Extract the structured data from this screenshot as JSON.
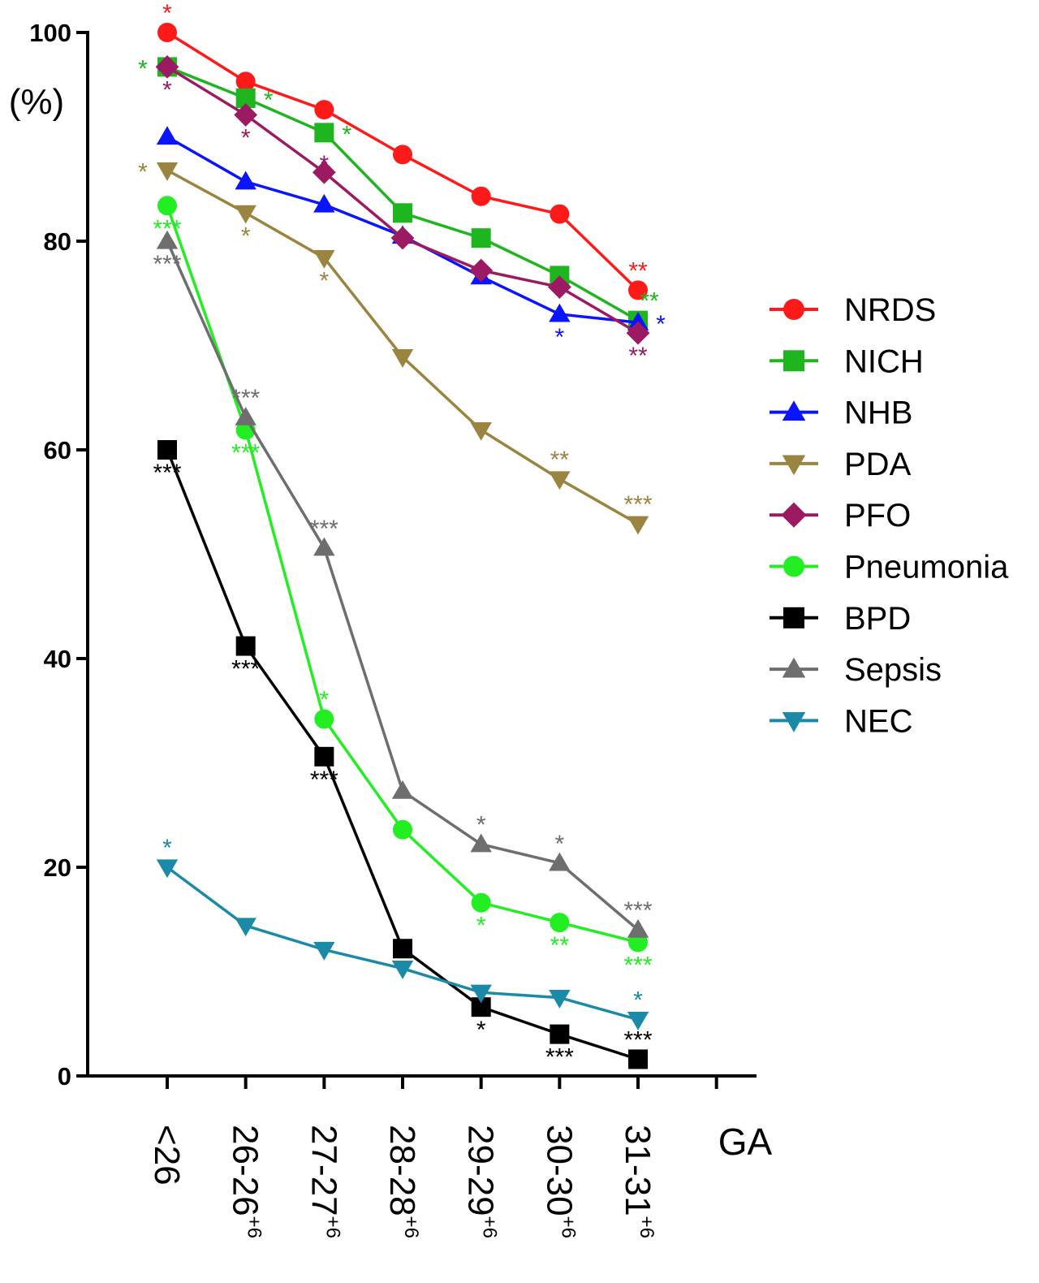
{
  "chart_data": {
    "type": "line",
    "title": "",
    "ylabel": "(%)",
    "xlabel": "GA",
    "ylim": [
      0,
      100
    ],
    "yticks": [
      0,
      20,
      40,
      60,
      80,
      100
    ],
    "grid": false,
    "legend_placement": "right",
    "categories": [
      {
        "base": "<26",
        "sup": ""
      },
      {
        "base": "26-26",
        "sup": "+6"
      },
      {
        "base": "27-27",
        "sup": "+6"
      },
      {
        "base": "28-28",
        "sup": "+6"
      },
      {
        "base": "29-29",
        "sup": "+6"
      },
      {
        "base": "30-30",
        "sup": "+6"
      },
      {
        "base": "31-31",
        "sup": "+6"
      }
    ],
    "series": [
      {
        "name": "NRDS",
        "color": "#ff1a1a",
        "marker": "circle",
        "values": [
          100,
          95.3,
          92.6,
          88.3,
          84.3,
          82.6,
          75.3
        ]
      },
      {
        "name": "NICH",
        "color": "#1fb51f",
        "marker": "square",
        "values": [
          96.7,
          93.7,
          90.4,
          82.7,
          80.3,
          76.7,
          72.4
        ]
      },
      {
        "name": "NHB",
        "color": "#0a14ff",
        "marker": "triangle-up",
        "values": [
          90.0,
          85.7,
          83.5,
          80.5,
          76.6,
          73.0,
          72.2
        ]
      },
      {
        "name": "PDA",
        "color": "#9a8440",
        "marker": "triangle-down",
        "values": [
          86.8,
          82.7,
          78.4,
          68.9,
          61.9,
          57.2,
          52.9
        ]
      },
      {
        "name": "PFO",
        "color": "#9c1a62",
        "marker": "diamond",
        "values": [
          96.7,
          92.1,
          86.6,
          80.3,
          77.2,
          75.6,
          71.2
        ]
      },
      {
        "name": "Pneumonia",
        "color": "#22ee22",
        "marker": "circle",
        "values": [
          83.4,
          61.9,
          34.2,
          23.6,
          16.6,
          14.7,
          12.8
        ]
      },
      {
        "name": "BPD",
        "color": "#000000",
        "marker": "square",
        "values": [
          60.0,
          41.2,
          30.6,
          12.2,
          6.6,
          4.0,
          1.6
        ]
      },
      {
        "name": "Sepsis",
        "color": "#6e6e6e",
        "marker": "triangle-up",
        "values": [
          80.0,
          63.1,
          50.6,
          27.3,
          22.2,
          20.4,
          14.0
        ]
      },
      {
        "name": "NEC",
        "color": "#1a8aa8",
        "marker": "triangle-down",
        "values": [
          20.0,
          14.4,
          12.1,
          10.3,
          8.0,
          7.5,
          5.4
        ]
      }
    ],
    "annotations": [
      {
        "series": 0,
        "index": 0,
        "text": "*",
        "pos": "above"
      },
      {
        "series": 0,
        "index": 6,
        "text": "**",
        "pos": "above"
      },
      {
        "series": 1,
        "index": 0,
        "text": "*",
        "pos": "left"
      },
      {
        "series": 1,
        "index": 1,
        "text": "*",
        "pos": "right"
      },
      {
        "series": 1,
        "index": 2,
        "text": "*",
        "pos": "right"
      },
      {
        "series": 1,
        "index": 6,
        "text": "**",
        "pos": "above-right"
      },
      {
        "series": 2,
        "index": 5,
        "text": "*",
        "pos": "below"
      },
      {
        "series": 2,
        "index": 6,
        "text": "*",
        "pos": "right"
      },
      {
        "series": 3,
        "index": 0,
        "text": "*",
        "pos": "left"
      },
      {
        "series": 3,
        "index": 1,
        "text": "*",
        "pos": "below"
      },
      {
        "series": 3,
        "index": 2,
        "text": "*",
        "pos": "below"
      },
      {
        "series": 3,
        "index": 5,
        "text": "**",
        "pos": "above"
      },
      {
        "series": 3,
        "index": 6,
        "text": "***",
        "pos": "above"
      },
      {
        "series": 4,
        "index": 0,
        "text": "*",
        "pos": "below"
      },
      {
        "series": 4,
        "index": 1,
        "text": "*",
        "pos": "below"
      },
      {
        "series": 4,
        "index": 2,
        "text": "*",
        "pos": "on"
      },
      {
        "series": 4,
        "index": 6,
        "text": "**",
        "pos": "below"
      },
      {
        "series": 5,
        "index": 0,
        "text": "***",
        "pos": "below"
      },
      {
        "series": 5,
        "index": 1,
        "text": "***",
        "pos": "below"
      },
      {
        "series": 5,
        "index": 2,
        "text": "*",
        "pos": "above"
      },
      {
        "series": 5,
        "index": 4,
        "text": "*",
        "pos": "below"
      },
      {
        "series": 5,
        "index": 5,
        "text": "**",
        "pos": "below"
      },
      {
        "series": 5,
        "index": 6,
        "text": "***",
        "pos": "below"
      },
      {
        "series": 6,
        "index": 0,
        "text": "***",
        "pos": "below"
      },
      {
        "series": 6,
        "index": 1,
        "text": "***",
        "pos": "below"
      },
      {
        "series": 6,
        "index": 2,
        "text": "***",
        "pos": "below"
      },
      {
        "series": 6,
        "index": 4,
        "text": "*",
        "pos": "below"
      },
      {
        "series": 6,
        "index": 5,
        "text": "***",
        "pos": "below"
      },
      {
        "series": 6,
        "index": 6,
        "text": "***",
        "pos": "above"
      },
      {
        "series": 7,
        "index": 0,
        "text": "***",
        "pos": "below"
      },
      {
        "series": 7,
        "index": 1,
        "text": "***",
        "pos": "above"
      },
      {
        "series": 7,
        "index": 2,
        "text": "***",
        "pos": "above"
      },
      {
        "series": 7,
        "index": 4,
        "text": "*",
        "pos": "above"
      },
      {
        "series": 7,
        "index": 5,
        "text": "*",
        "pos": "above"
      },
      {
        "series": 7,
        "index": 6,
        "text": "***",
        "pos": "above"
      },
      {
        "series": 8,
        "index": 0,
        "text": "*",
        "pos": "above"
      },
      {
        "series": 8,
        "index": 6,
        "text": "*",
        "pos": "above"
      }
    ]
  }
}
